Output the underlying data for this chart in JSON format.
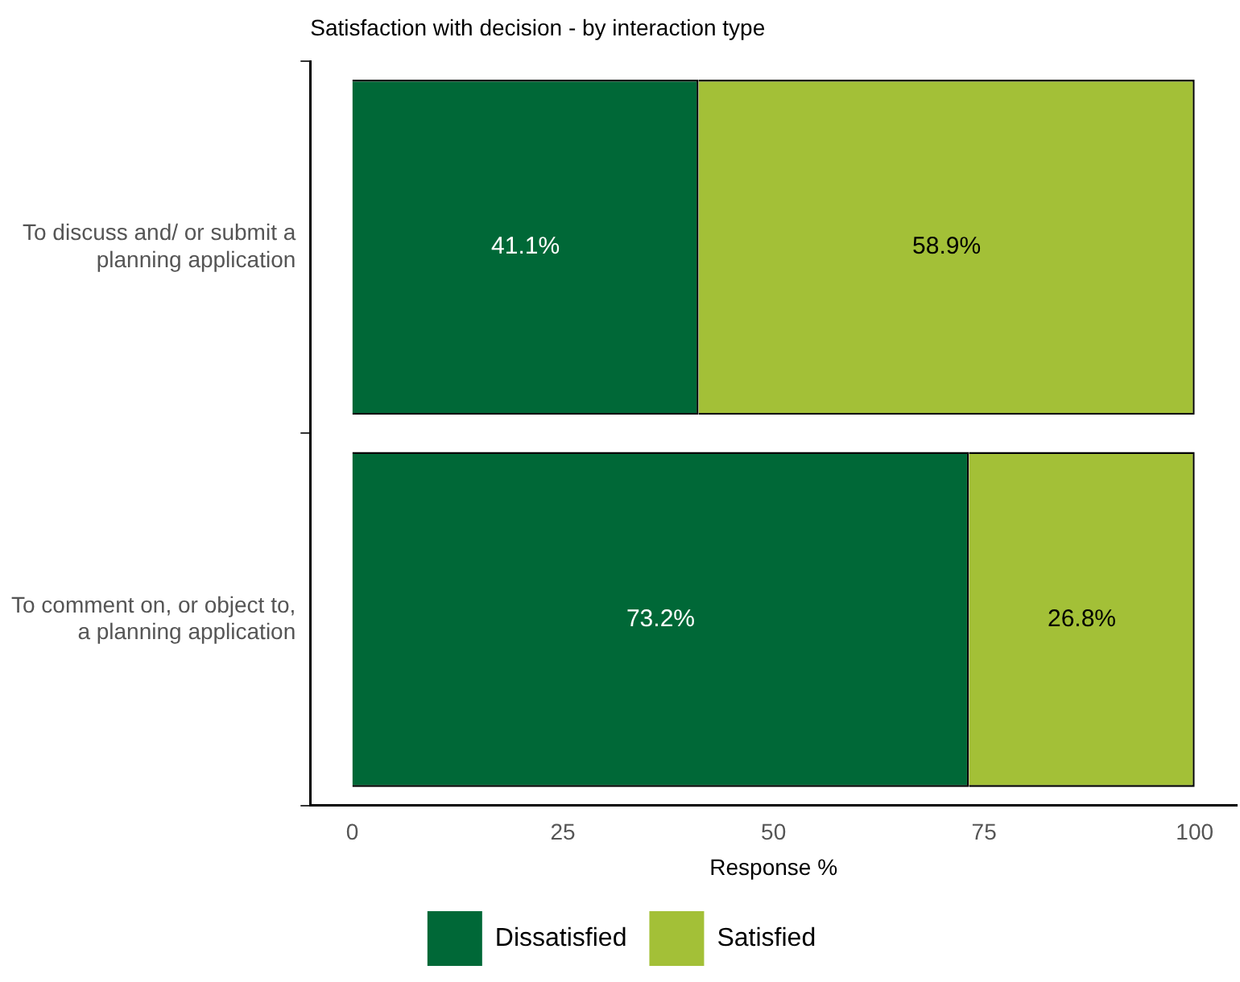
{
  "chart_data": {
    "type": "bar",
    "orientation": "horizontal",
    "stacked": true,
    "title": "Satisfaction with decision - by interaction type",
    "xlabel": "Response %",
    "categories": [
      "To discuss and/ or submit a planning application",
      "To comment on, or object to, a planning application"
    ],
    "series": [
      {
        "name": "Dissatisfied",
        "color": "#006837",
        "values": [
          41.1,
          73.2
        ],
        "value_labels": [
          "41.1%",
          "73.2%"
        ]
      },
      {
        "name": "Satisfied",
        "color": "#a3c037",
        "values": [
          58.9,
          26.8
        ],
        "value_labels": [
          "58.9%",
          "26.8%"
        ]
      }
    ],
    "xlim": [
      -5,
      105
    ],
    "xticks": [
      0,
      25,
      50,
      75,
      100
    ],
    "grid": false,
    "legend": "bottom"
  }
}
